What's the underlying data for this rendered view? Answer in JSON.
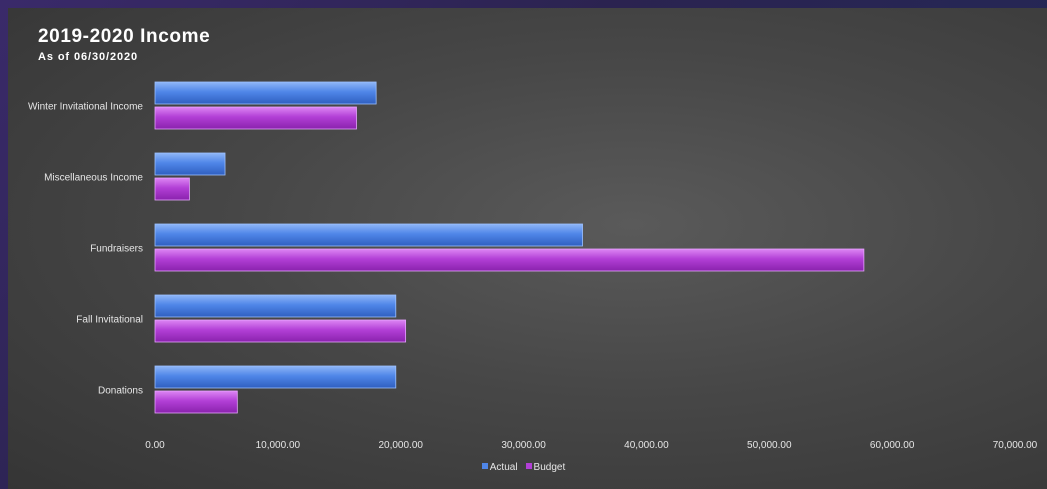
{
  "title": "2019-2020 Income",
  "subtitle": "As of 06/30/2020",
  "colors": {
    "actual": "#4f86e8",
    "budget": "#b23fd6",
    "axis_text": "#e6e6e6"
  },
  "chart_data": {
    "type": "bar",
    "orientation": "horizontal",
    "categories": [
      "Winter Invitational Income",
      "Miscellaneous Income",
      "Fundraisers",
      "Fall Invitational",
      "Donations"
    ],
    "series": [
      {
        "name": "Actual",
        "values": [
          18000,
          5700,
          34800,
          19600,
          19600
        ]
      },
      {
        "name": "Budget",
        "values": [
          16400,
          2800,
          57700,
          20400,
          6700
        ]
      }
    ],
    "xlim": [
      0,
      70000
    ],
    "x_ticks": [
      "0.00",
      "10,000.00",
      "20,000.00",
      "30,000.00",
      "40,000.00",
      "50,000.00",
      "60,000.00",
      "70,000.00"
    ],
    "x_tick_values": [
      0,
      10000,
      20000,
      30000,
      40000,
      50000,
      60000,
      70000
    ],
    "grid": false,
    "legend_position": "bottom"
  }
}
